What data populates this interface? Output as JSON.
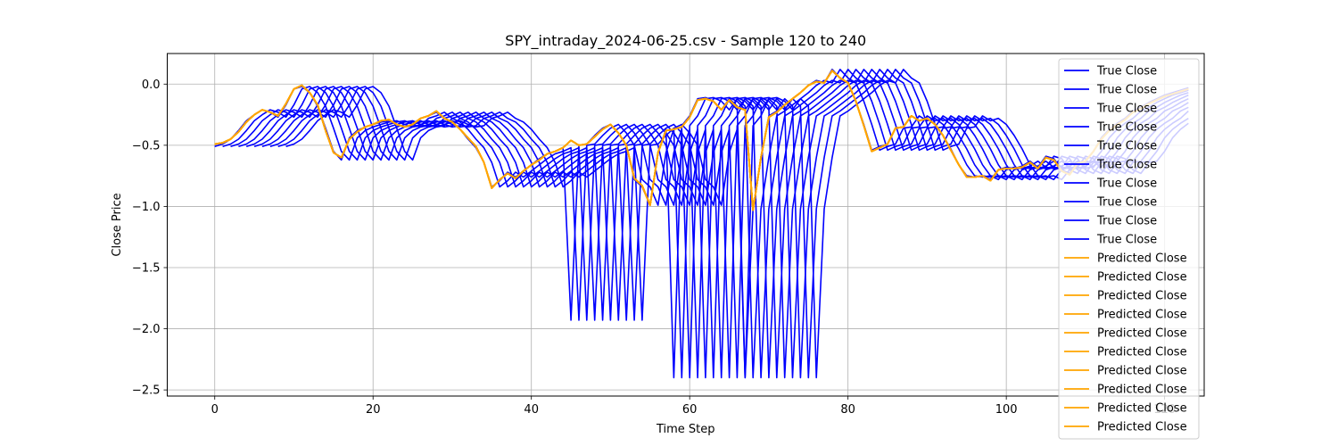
{
  "chart_data": {
    "type": "line",
    "title": "SPY_intraday_2024-06-25.csv - Sample 120 to 240",
    "xlabel": "Time Step",
    "ylabel": "Close Price",
    "xlim": [
      -6,
      125
    ],
    "ylim": [
      -2.55,
      0.25
    ],
    "x_ticks": [
      0,
      20,
      40,
      60,
      80,
      100,
      120
    ],
    "y_ticks": [
      -2.5,
      -2.0,
      -1.5,
      -1.0,
      -0.5,
      0.0
    ],
    "x_tick_labels": [
      "0",
      "20",
      "40",
      "60",
      "80",
      "100",
      "120"
    ],
    "y_tick_labels": [
      "−2.5",
      "−2.0",
      "−1.5",
      "−1.0",
      "−0.5",
      "0.0"
    ],
    "grid": true,
    "legend_position": "top-right",
    "colors": {
      "true": "#0000ff",
      "predicted": "#ffa500"
    },
    "true_base": {
      "x": [
        0,
        1,
        2,
        3,
        4,
        5,
        6,
        7,
        8,
        9,
        10,
        11,
        12,
        13,
        14,
        15,
        16,
        17,
        18,
        19,
        20,
        21,
        22,
        23,
        24,
        25,
        26,
        27,
        28,
        29,
        30,
        31,
        32,
        33,
        34,
        35,
        36,
        37,
        38,
        39,
        40,
        41,
        42,
        43,
        44,
        45,
        46,
        47,
        48,
        49,
        50,
        51,
        52,
        53,
        54,
        55,
        56,
        57,
        58,
        59,
        60,
        61,
        62,
        63,
        64,
        65,
        66,
        67,
        68,
        69,
        70,
        71,
        72,
        73,
        74,
        75,
        76,
        77,
        78,
        79,
        80,
        81,
        82,
        83,
        84,
        85,
        86,
        87,
        88,
        89,
        90,
        91,
        92,
        93,
        94,
        95,
        96,
        97,
        98,
        99,
        100,
        101,
        102,
        103,
        104,
        105,
        106,
        107,
        108,
        109,
        110,
        111,
        112,
        113,
        114,
        115,
        116,
        117,
        118,
        119,
        120,
        121,
        122,
        123
      ],
      "values": [
        -0.51,
        -0.49,
        -0.45,
        -0.38,
        -0.3,
        -0.25,
        -0.21,
        -0.23,
        -0.27,
        -0.17,
        -0.04,
        -0.02,
        -0.07,
        -0.18,
        -0.36,
        -0.55,
        -0.62,
        -0.44,
        -0.38,
        -0.35,
        -0.33,
        -0.31,
        -0.3,
        -0.33,
        -0.35,
        -0.34,
        -0.28,
        -0.26,
        -0.23,
        -0.28,
        -0.31,
        -0.37,
        -0.45,
        -0.52,
        -0.64,
        -0.84,
        -0.79,
        -0.72,
        -0.76,
        -0.71,
        -0.66,
        -0.61,
        -0.57,
        -0.55,
        -0.52,
        -1.93,
        -0.5,
        -0.49,
        -0.42,
        -0.36,
        -0.33,
        -0.4,
        -0.5,
        -0.78,
        -0.84,
        -0.99,
        -0.56,
        -0.37,
        -2.4,
        -0.34,
        -0.26,
        -0.12,
        -0.11,
        -0.14,
        -0.21,
        -0.12,
        -0.18,
        -2.4,
        -1.02,
        -0.6,
        -0.26,
        -0.22,
        -0.17,
        -0.12,
        -0.07,
        -0.01,
        0.03,
        0.01,
        0.12,
        0.05,
        0.01,
        -0.14,
        -0.33,
        -0.54,
        -0.51,
        -0.49,
        -0.36,
        -0.35,
        -0.26,
        -0.3,
        -0.28,
        -0.33,
        -0.42,
        -0.53,
        -0.66,
        -0.75,
        -0.76,
        -0.75,
        -0.78,
        -0.7,
        -0.68,
        -0.69,
        -0.67,
        -0.63,
        -0.68,
        -0.59,
        -0.61,
        -0.7,
        -0.73,
        -0.64,
        -0.63,
        -0.55,
        -0.44,
        -0.37,
        -0.32,
        -0.28,
        -0.22,
        -0.19,
        -0.15,
        -0.12,
        -0.09,
        -0.07,
        -0.05,
        -0.03
      ],
      "lag_offsets": [
        0,
        1,
        2,
        3,
        4,
        5,
        6,
        7,
        8,
        9
      ]
    },
    "predicted": {
      "x": [
        0,
        1,
        2,
        3,
        4,
        5,
        6,
        7,
        8,
        9,
        10,
        11,
        12,
        13,
        14,
        15,
        16,
        17,
        18,
        19,
        20,
        21,
        22,
        23,
        24,
        25,
        26,
        27,
        28,
        29,
        30,
        31,
        32,
        33,
        34,
        35,
        36,
        37,
        38,
        39,
        40,
        41,
        42,
        43,
        44,
        45,
        46,
        47,
        48,
        49,
        50,
        51,
        52,
        53,
        54,
        55,
        56,
        57,
        58,
        59,
        60,
        61,
        62,
        63,
        64,
        65,
        66,
        67,
        68,
        69,
        70,
        71,
        72,
        73,
        74,
        75,
        76,
        77,
        78,
        79,
        80,
        81,
        82,
        83,
        84,
        85,
        86,
        87,
        88,
        89,
        90,
        91,
        92,
        93,
        94,
        95,
        96,
        97,
        98,
        99,
        100,
        101,
        102,
        103,
        104,
        105,
        106,
        107,
        108,
        109,
        110,
        111,
        112,
        113,
        114,
        115,
        116,
        117,
        118,
        119,
        120,
        121,
        122,
        123
      ],
      "values": [
        -0.49,
        -0.48,
        -0.45,
        -0.39,
        -0.31,
        -0.25,
        -0.21,
        -0.23,
        -0.26,
        -0.16,
        -0.04,
        -0.01,
        -0.07,
        -0.17,
        -0.38,
        -0.56,
        -0.6,
        -0.45,
        -0.39,
        -0.35,
        -0.33,
        -0.3,
        -0.29,
        -0.33,
        -0.35,
        -0.33,
        -0.28,
        -0.26,
        -0.22,
        -0.28,
        -0.31,
        -0.37,
        -0.44,
        -0.51,
        -0.64,
        -0.85,
        -0.78,
        -0.73,
        -0.77,
        -0.71,
        -0.66,
        -0.62,
        -0.57,
        -0.55,
        -0.52,
        -0.46,
        -0.5,
        -0.49,
        -0.43,
        -0.37,
        -0.33,
        -0.4,
        -0.5,
        -0.77,
        -0.83,
        -0.99,
        -0.56,
        -0.38,
        -0.37,
        -0.35,
        -0.27,
        -0.13,
        -0.12,
        -0.14,
        -0.21,
        -0.13,
        -0.19,
        -0.21,
        -1.03,
        -0.6,
        -0.27,
        -0.23,
        -0.17,
        -0.12,
        -0.07,
        -0.01,
        0.02,
        0.01,
        0.11,
        0.05,
        0.01,
        -0.14,
        -0.34,
        -0.55,
        -0.52,
        -0.49,
        -0.36,
        -0.35,
        -0.26,
        -0.3,
        -0.28,
        -0.33,
        -0.42,
        -0.54,
        -0.66,
        -0.76,
        -0.76,
        -0.75,
        -0.79,
        -0.7,
        -0.69,
        -0.69,
        -0.68,
        -0.64,
        -0.69,
        -0.6,
        -0.62,
        -0.71,
        -0.74,
        -0.65,
        -0.63,
        -0.55,
        -0.45,
        -0.38,
        -0.33,
        -0.29,
        -0.23,
        -0.2,
        -0.16,
        -0.13,
        -0.1,
        -0.08,
        -0.06,
        -0.04
      ]
    },
    "legend": [
      "True Close",
      "True Close",
      "True Close",
      "True Close",
      "True Close",
      "True Close",
      "True Close",
      "True Close",
      "True Close",
      "True Close",
      "Predicted Close",
      "Predicted Close",
      "Predicted Close",
      "Predicted Close",
      "Predicted Close",
      "Predicted Close",
      "Predicted Close",
      "Predicted Close",
      "Predicted Close",
      "Predicted Close"
    ]
  }
}
